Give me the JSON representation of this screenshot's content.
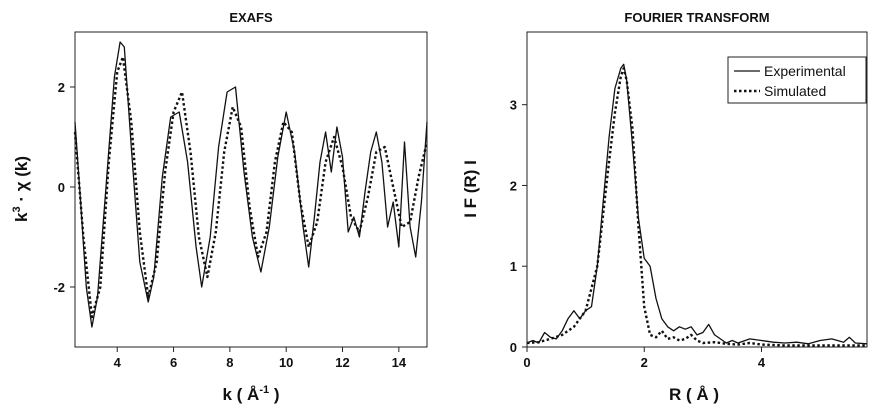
{
  "chart_data": [
    {
      "type": "line",
      "title": "EXAFS",
      "xlabel": {
        "base": "k ( Å",
        "sup": "-1",
        "suffix": " )"
      },
      "ylabel": {
        "pre": "k",
        "sup": "3",
        "post": " · χ (k)"
      },
      "xlim": [
        2.5,
        15
      ],
      "ylim": [
        -3.2,
        3.1
      ],
      "xticks": [
        "4",
        "6",
        "8",
        "10",
        "12",
        "14"
      ],
      "yticks": [
        "2",
        "0",
        "-2"
      ],
      "grid": false,
      "series": [
        {
          "style": "solid",
          "x": [
            2.5,
            2.7,
            2.9,
            3.1,
            3.3,
            3.6,
            3.9,
            4.1,
            4.25,
            4.5,
            4.8,
            5.1,
            5.3,
            5.6,
            5.9,
            6.2,
            6.5,
            6.8,
            7.0,
            7.3,
            7.6,
            7.9,
            8.2,
            8.5,
            8.8,
            9.1,
            9.4,
            9.7,
            10.0,
            10.3,
            10.6,
            10.8,
            11.0,
            11.2,
            11.4,
            11.6,
            11.8,
            12.0,
            12.2,
            12.4,
            12.6,
            12.8,
            13.0,
            13.2,
            13.4,
            13.6,
            13.8,
            14.0,
            14.2,
            14.4,
            14.6,
            14.8,
            15.0
          ],
          "y": [
            1.3,
            -0.3,
            -2.0,
            -2.8,
            -2.2,
            0.0,
            2.2,
            2.9,
            2.8,
            0.8,
            -1.5,
            -2.3,
            -1.8,
            0.2,
            1.4,
            1.5,
            0.5,
            -1.2,
            -2.0,
            -1.0,
            0.8,
            1.9,
            2.0,
            0.3,
            -1.0,
            -1.7,
            -0.8,
            0.6,
            1.5,
            0.7,
            -0.8,
            -1.6,
            -0.6,
            0.5,
            1.1,
            0.3,
            1.2,
            0.6,
            -0.9,
            -0.6,
            -1.0,
            -0.1,
            0.7,
            1.1,
            0.5,
            -0.8,
            -0.3,
            -1.2,
            0.9,
            -0.8,
            -1.4,
            -0.3,
            1.3
          ]
        },
        {
          "style": "dotted",
          "x": [
            2.5,
            2.8,
            3.1,
            3.4,
            3.7,
            4.0,
            4.2,
            4.5,
            4.8,
            5.1,
            5.4,
            5.7,
            6.0,
            6.3,
            6.6,
            6.9,
            7.2,
            7.5,
            7.8,
            8.1,
            8.4,
            8.7,
            9.0,
            9.3,
            9.6,
            9.9,
            10.2,
            10.5,
            10.8,
            11.1,
            11.4,
            11.7,
            12.0,
            12.3,
            12.6,
            12.9,
            13.2,
            13.5,
            13.8,
            14.1,
            14.4,
            14.7,
            15.0
          ],
          "y": [
            1.1,
            -1.0,
            -2.6,
            -2.0,
            0.5,
            2.3,
            2.6,
            1.3,
            -0.9,
            -2.2,
            -1.5,
            0.3,
            1.5,
            1.9,
            0.7,
            -1.0,
            -1.8,
            -0.9,
            0.7,
            1.6,
            1.2,
            -0.4,
            -1.4,
            -0.9,
            0.5,
            1.3,
            1.1,
            -0.3,
            -1.2,
            -0.7,
            0.5,
            1.0,
            0.4,
            -0.6,
            -0.9,
            -0.2,
            0.7,
            0.8,
            0.0,
            -0.8,
            -0.7,
            0.2,
            0.9
          ]
        }
      ]
    },
    {
      "type": "line",
      "title": "FOURIER  TRANSFORM",
      "xlabel": "R ( Å )",
      "ylabel": "I F (R) I",
      "xlim": [
        0,
        5.8
      ],
      "ylim": [
        0,
        3.9
      ],
      "xticks": [
        "0",
        "2",
        "4"
      ],
      "yticks": [
        "0",
        "1",
        "2",
        "3"
      ],
      "grid": false,
      "legend": {
        "placement": "top-right"
      },
      "series": [
        {
          "name": "Experimental",
          "style": "solid",
          "x": [
            0,
            0.1,
            0.2,
            0.3,
            0.4,
            0.5,
            0.6,
            0.7,
            0.8,
            0.9,
            1.0,
            1.1,
            1.2,
            1.3,
            1.4,
            1.5,
            1.6,
            1.65,
            1.7,
            1.8,
            1.9,
            2.0,
            2.1,
            2.2,
            2.3,
            2.4,
            2.5,
            2.6,
            2.7,
            2.8,
            2.9,
            3.0,
            3.1,
            3.2,
            3.3,
            3.4,
            3.5,
            3.6,
            3.8,
            4.0,
            4.2,
            4.4,
            4.6,
            4.8,
            5.0,
            5.2,
            5.4,
            5.5,
            5.6,
            5.8
          ],
          "y": [
            0.05,
            0.08,
            0.05,
            0.18,
            0.12,
            0.1,
            0.2,
            0.35,
            0.45,
            0.35,
            0.45,
            0.5,
            1.0,
            1.8,
            2.6,
            3.2,
            3.45,
            3.5,
            3.3,
            2.5,
            1.6,
            1.1,
            1.0,
            0.6,
            0.35,
            0.25,
            0.2,
            0.25,
            0.22,
            0.25,
            0.15,
            0.18,
            0.28,
            0.15,
            0.1,
            0.05,
            0.08,
            0.05,
            0.1,
            0.08,
            0.06,
            0.05,
            0.06,
            0.04,
            0.08,
            0.1,
            0.06,
            0.12,
            0.05,
            0.04
          ]
        },
        {
          "name": "Simulated",
          "style": "dotted",
          "x": [
            0,
            0.2,
            0.4,
            0.6,
            0.8,
            1.0,
            1.2,
            1.4,
            1.5,
            1.6,
            1.65,
            1.7,
            1.8,
            1.9,
            2.0,
            2.1,
            2.2,
            2.3,
            2.4,
            2.5,
            2.6,
            2.7,
            2.8,
            2.9,
            3.0,
            3.2,
            3.4,
            3.6,
            3.8,
            4.0,
            4.4,
            4.8,
            5.2,
            5.6,
            5.8
          ],
          "y": [
            0.05,
            0.06,
            0.1,
            0.15,
            0.25,
            0.45,
            1.0,
            2.3,
            2.9,
            3.35,
            3.45,
            3.3,
            2.7,
            1.5,
            0.5,
            0.15,
            0.12,
            0.2,
            0.1,
            0.12,
            0.08,
            0.1,
            0.15,
            0.08,
            0.05,
            0.06,
            0.04,
            0.03,
            0.05,
            0.03,
            0.02,
            0.02,
            0.02,
            0.02,
            0.02
          ]
        }
      ]
    }
  ]
}
